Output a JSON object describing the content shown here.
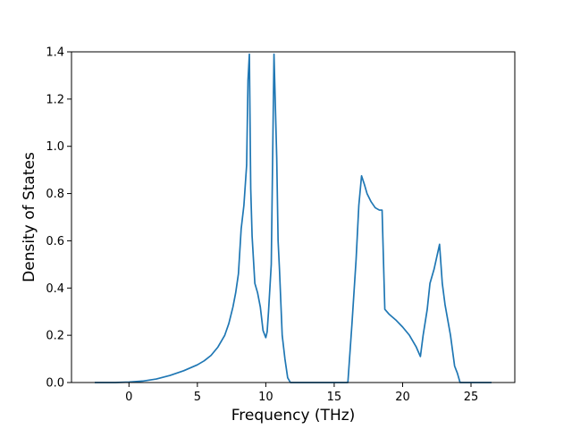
{
  "chart_data": {
    "type": "line",
    "title": "",
    "xlabel": "Frequency (THz)",
    "ylabel": "Density of States",
    "xlim": [
      -4.2,
      28.2
    ],
    "ylim": [
      0.0,
      1.4
    ],
    "xticks": [
      0,
      5,
      10,
      15,
      20,
      25
    ],
    "yticks": [
      0.0,
      0.2,
      0.4,
      0.6,
      0.8,
      1.0,
      1.2,
      1.4
    ],
    "xtick_labels": [
      "0",
      "5",
      "10",
      "15",
      "20",
      "25"
    ],
    "ytick_labels": [
      "0.0",
      "0.2",
      "0.4",
      "0.6",
      "0.8",
      "1.0",
      "1.2",
      "1.4"
    ],
    "grid": false,
    "legend": "none",
    "line_color": "#1f77b4",
    "series": [
      {
        "x": [
          -2.5,
          -1.0,
          0.0,
          1.0,
          2.0,
          3.0,
          4.0,
          5.0,
          5.5,
          6.0,
          6.5,
          7.0,
          7.3,
          7.6,
          7.8,
          8.0,
          8.2,
          8.4,
          8.6,
          8.7,
          8.8,
          8.9,
          9.0,
          9.2,
          9.4,
          9.6,
          9.8,
          10.0,
          10.1,
          10.2,
          10.4,
          10.6,
          10.8,
          10.9,
          11.0,
          11.2,
          11.4,
          11.6,
          11.8,
          12.0,
          13.0,
          14.0,
          15.0,
          16.0,
          16.3,
          16.6,
          16.8,
          17.0,
          17.2,
          17.4,
          17.7,
          18.0,
          18.3,
          18.5,
          18.7,
          19.0,
          19.5,
          20.0,
          20.5,
          21.0,
          21.3,
          21.5,
          21.8,
          22.0,
          22.3,
          22.7,
          22.9,
          23.1,
          23.5,
          23.8,
          24.0,
          24.2,
          24.5,
          25.5,
          26.5
        ],
        "y": [
          0.0,
          0.0,
          0.002,
          0.006,
          0.015,
          0.03,
          0.05,
          0.075,
          0.092,
          0.115,
          0.15,
          0.2,
          0.25,
          0.32,
          0.38,
          0.46,
          0.65,
          0.75,
          0.92,
          1.28,
          1.39,
          0.82,
          0.62,
          0.42,
          0.38,
          0.32,
          0.22,
          0.19,
          0.215,
          0.3,
          0.5,
          1.39,
          0.95,
          0.6,
          0.48,
          0.2,
          0.1,
          0.02,
          0.0,
          0.0,
          0.0,
          0.0,
          0.0,
          0.0,
          0.25,
          0.52,
          0.75,
          0.875,
          0.84,
          0.8,
          0.765,
          0.74,
          0.73,
          0.73,
          0.31,
          0.29,
          0.265,
          0.235,
          0.2,
          0.15,
          0.11,
          0.2,
          0.31,
          0.42,
          0.48,
          0.585,
          0.42,
          0.33,
          0.2,
          0.07,
          0.04,
          0.0,
          0.0,
          0.0,
          0.0
        ]
      }
    ]
  }
}
